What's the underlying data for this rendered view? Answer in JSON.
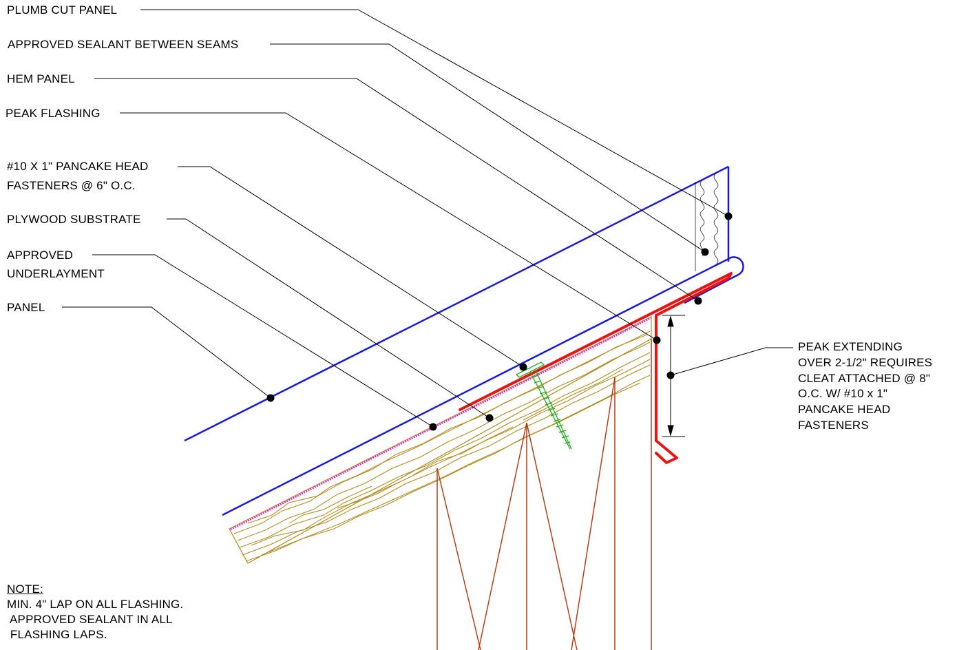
{
  "labels": {
    "plumb_cut_panel": "PLUMB CUT PANEL",
    "approved_sealant": "APPROVED SEALANT BETWEEN SEAMS",
    "hem_panel": "HEM PANEL",
    "peak_flashing": "PEAK FLASHING",
    "fastener_line1": "#10 X 1\"  PANCAKE HEAD",
    "fastener_line2": "FASTENERS @ 6\" O.C.",
    "plywood_substrate": "PLYWOOD SUBSTRATE",
    "underlayment_line1": "APPROVED",
    "underlayment_line2": "UNDERLAYMENT",
    "panel": "PANEL",
    "peak_extending_lines": [
      "PEAK EXTENDING",
      "OVER 2-1/2\" REQUIRES",
      "CLEAT ATTACHED @ 8\"",
      "O.C. W/ #10 x 1\"",
      "PANCAKE HEAD",
      "FASTENERS"
    ]
  },
  "note": {
    "title": "NOTE:",
    "lines": [
      "MIN. 4\" LAP ON ALL FLASHING.",
      " APPROVED SEALANT IN ALL",
      " FLASHING LAPS."
    ]
  },
  "colors": {
    "panel": "#1a1adc",
    "flashing": "#ee1111",
    "wood": "#b08a1e",
    "truss": "#b0401a",
    "underlayment": "#e020e0",
    "fastener": "#22aa22",
    "leader": "#000000"
  }
}
